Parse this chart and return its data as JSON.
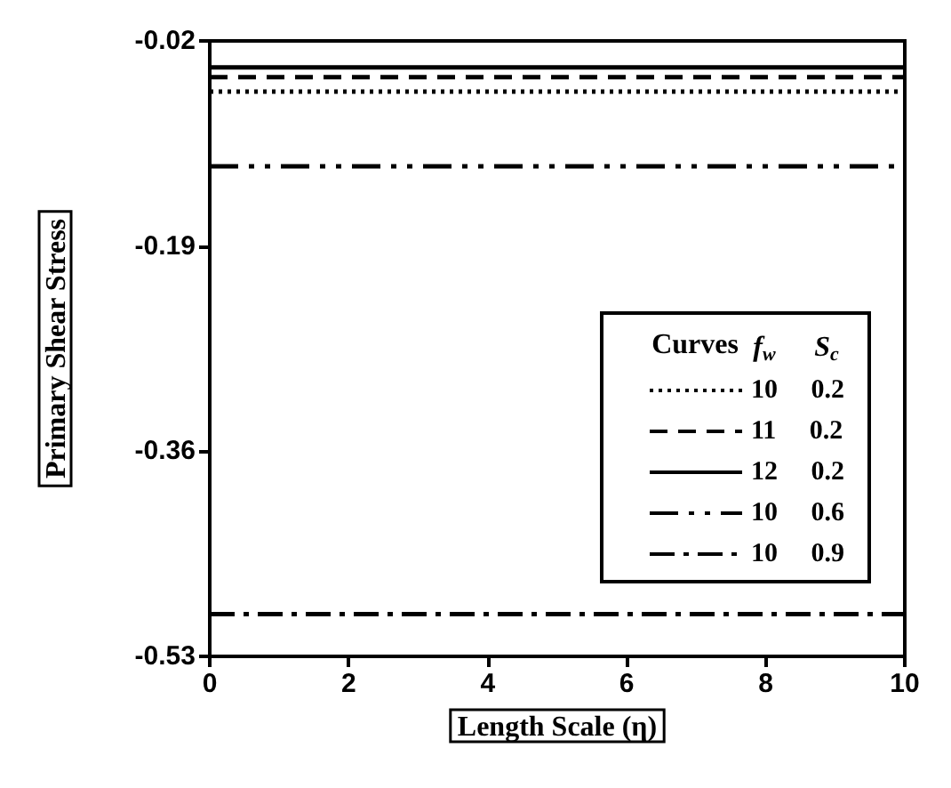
{
  "chart_data": {
    "type": "line",
    "xlabel": "Length Scale (η)",
    "ylabel": "Primary Shear Stress",
    "legend_title": "Curves f$_{w}$ S$_{c}$",
    "x": [
      0,
      10
    ],
    "series": [
      {
        "name": "10     0.2",
        "color": "#000000",
        "line_style": "dotted",
        "values": [
          -0.062,
          -0.062
        ]
      },
      {
        "name": "11     0.2",
        "color": "#000000",
        "line_style": "dashed",
        "values": [
          -0.05,
          -0.05
        ]
      },
      {
        "name": "12     0.2",
        "color": "#000000",
        "line_style": "solid",
        "values": [
          -0.042,
          -0.042
        ]
      },
      {
        "name": "10     0.6",
        "color": "#000000",
        "line_style": "dashdotdot",
        "values": [
          -0.124,
          -0.124
        ]
      },
      {
        "name": "10     0.9",
        "color": "#000000",
        "line_style": "dashdot",
        "values": [
          -0.495,
          -0.495
        ]
      }
    ],
    "xlim": [
      0,
      10
    ],
    "xticks": [
      0,
      2,
      4,
      6,
      8,
      10
    ],
    "ylim": [
      -0.53,
      -0.02
    ],
    "yticks": [
      -0.53,
      -0.36,
      -0.19,
      -0.02
    ],
    "legend": "right",
    "marker": "none",
    "grid": false
  }
}
